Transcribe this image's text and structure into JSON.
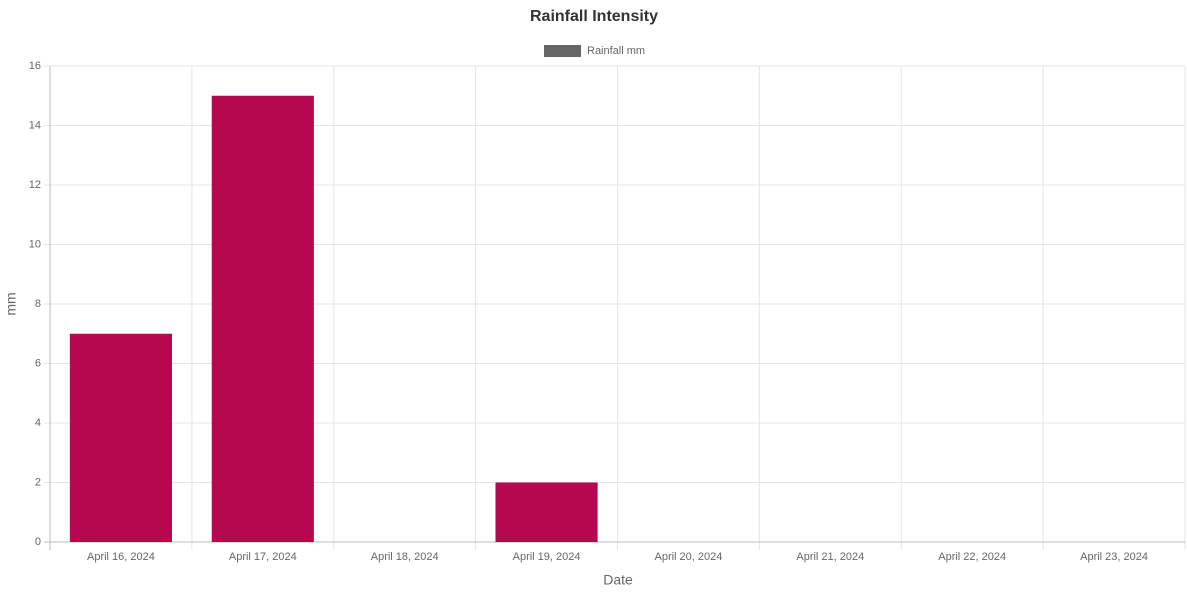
{
  "chart_data": {
    "type": "bar",
    "title": "Rainfall Intensity",
    "x_label": "Date",
    "y_label": "mm",
    "categories": [
      "April 16, 2024",
      "April 17, 2024",
      "April 18, 2024",
      "April 19, 2024",
      "April 20, 2024",
      "April 21, 2024",
      "April 22, 2024",
      "April 23, 2024"
    ],
    "series": [
      {
        "name": "Rainfall mm",
        "color": "#b5084f",
        "legend_color": "#666666",
        "values": [
          7,
          15,
          0,
          2,
          0,
          0,
          0,
          0
        ]
      }
    ],
    "ylim": [
      0,
      16
    ],
    "yticks": [
      0,
      2,
      4,
      6,
      8,
      10,
      12,
      14,
      16
    ],
    "grid": true,
    "legend": "top"
  }
}
